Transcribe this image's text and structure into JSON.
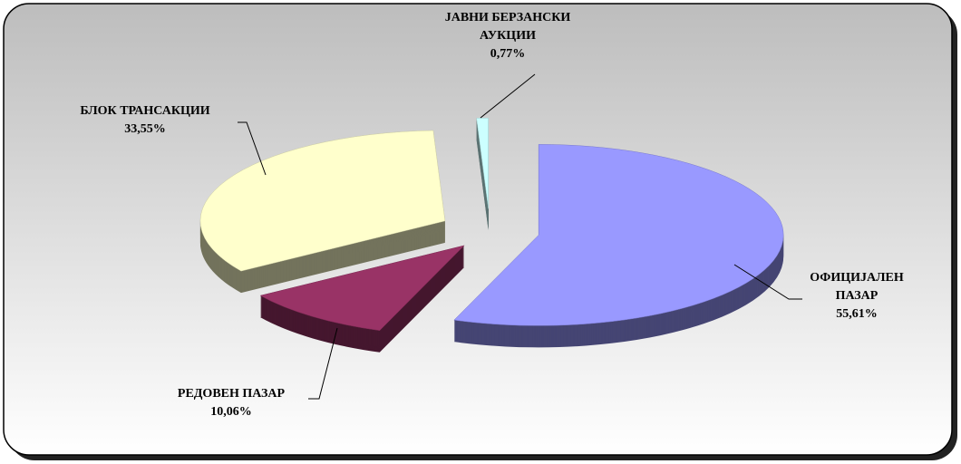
{
  "chart_data": {
    "type": "pie",
    "categories": [
      "ОФИЦИЈАЛЕН ПАЗАР",
      "РЕДОВЕН ПАЗАР",
      "БЛОК ТРАНСАКЦИИ",
      "ЈАВНИ БЕРЗАНСКИ АУКЦИИ"
    ],
    "values": [
      55.61,
      10.06,
      33.55,
      0.77
    ],
    "value_labels": [
      "55,61%",
      "10,06%",
      "33,55%",
      "0,77%"
    ],
    "colors": [
      "#9999ff",
      "#993366",
      "#ffffcc",
      "#ccffff"
    ]
  }
}
